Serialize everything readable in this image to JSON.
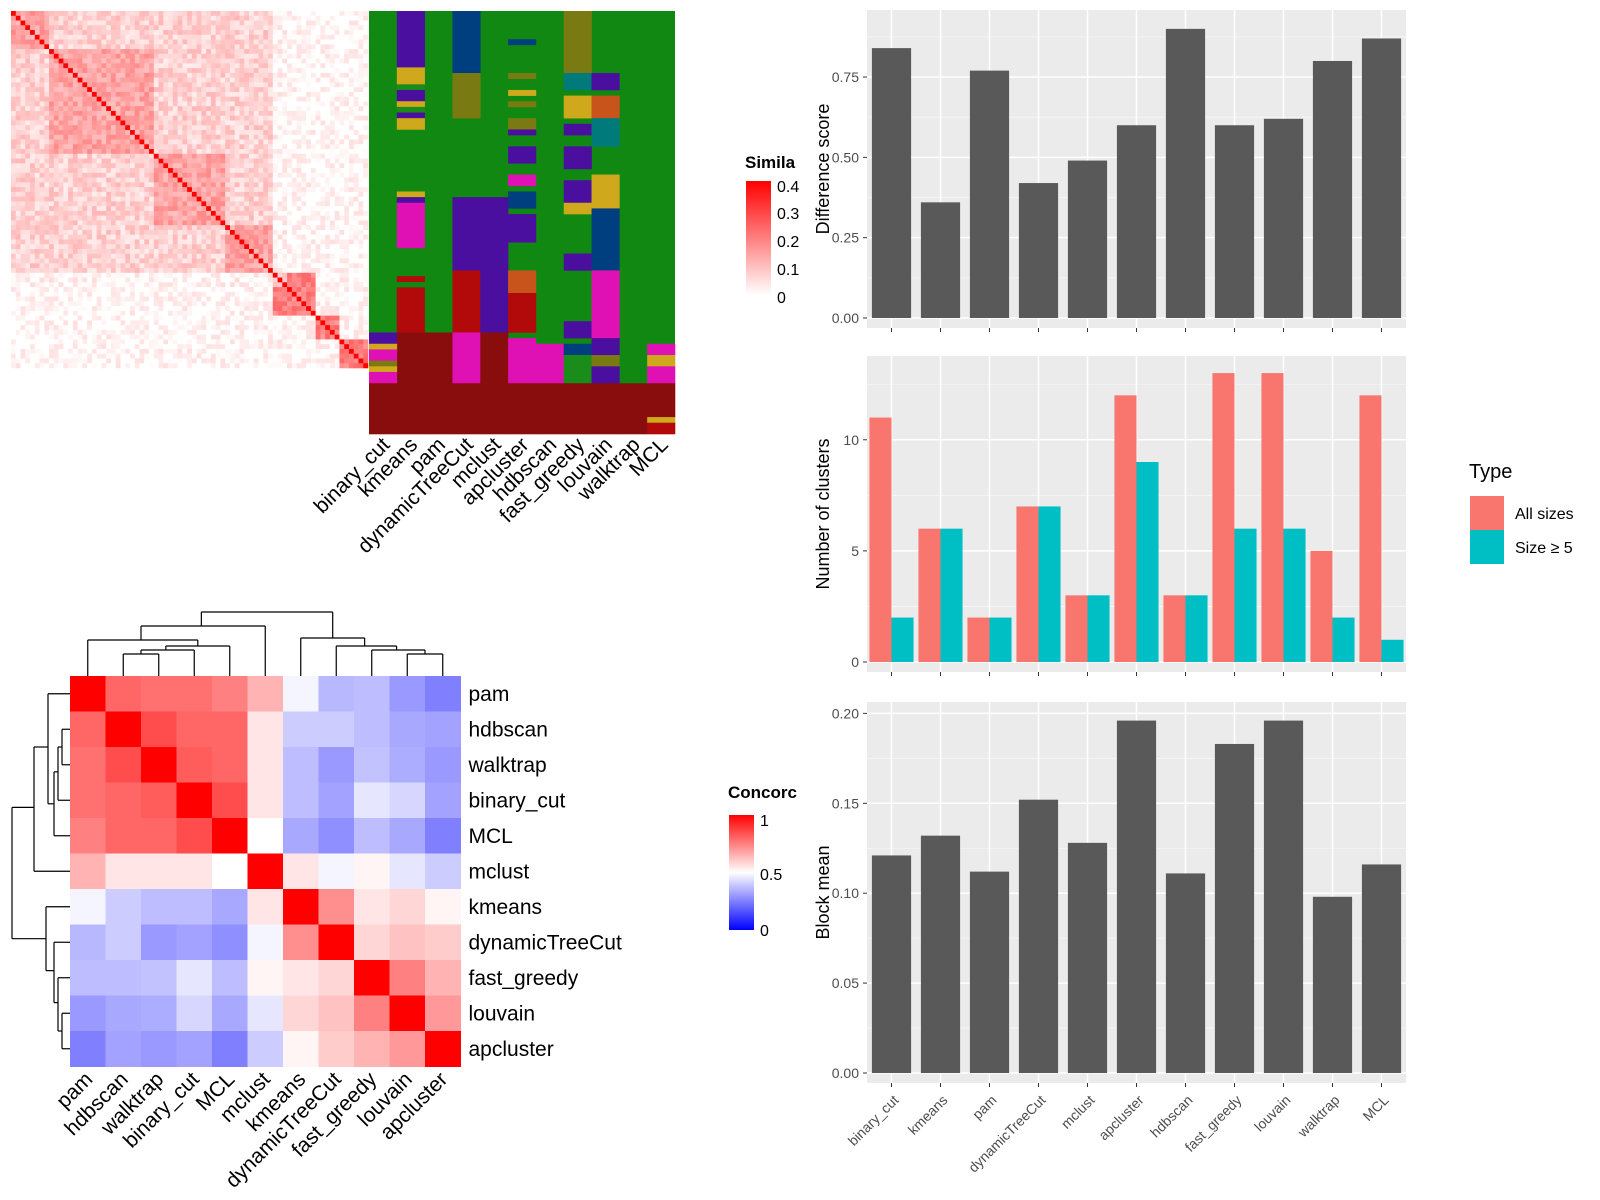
{
  "similarity_legend": {
    "title": "Simila",
    "ticks": [
      "0.4",
      "0.3",
      "0.2",
      "0.1",
      "0"
    ]
  },
  "concordance_legend": {
    "title": "Concorc",
    "ticks": [
      "1",
      "0.5",
      "0"
    ]
  },
  "methods_top": [
    "binary_cut",
    "kmeans",
    "pam",
    "dynamicTreeCut",
    "mclust",
    "apcluster",
    "hdbscan",
    "fast_greedy",
    "louvain",
    "walktrap",
    "MCL"
  ],
  "heatmap_order": [
    "pam",
    "hdbscan",
    "walktrap",
    "binary_cut",
    "MCL",
    "mclust",
    "kmeans",
    "dynamicTreeCut",
    "fast_greedy",
    "louvain",
    "apcluster"
  ],
  "type_legend": {
    "title": "Type",
    "items": [
      "All sizes",
      "Size ≥ 5"
    ]
  },
  "colors": {
    "all_sizes": "#F8766D",
    "size5": "#00BFC4",
    "bar": "#595959",
    "panel": "#EBEBEB"
  },
  "chart_data": [
    {
      "type": "bar",
      "categories": [
        "binary_cut",
        "kmeans",
        "pam",
        "dynamicTreeCut",
        "mclust",
        "apcluster",
        "hdbscan",
        "fast_greedy",
        "louvain",
        "walktrap",
        "MCL"
      ],
      "values": [
        0.84,
        0.36,
        0.77,
        0.42,
        0.49,
        0.6,
        0.9,
        0.6,
        0.62,
        0.8,
        0.87
      ],
      "ylabel": "Difference score",
      "ylim": [
        0,
        0.94
      ],
      "yticks": [
        "0.00",
        "0.25",
        "0.50",
        "0.75"
      ]
    },
    {
      "type": "bar",
      "categories": [
        "binary_cut",
        "kmeans",
        "pam",
        "dynamicTreeCut",
        "mclust",
        "apcluster",
        "hdbscan",
        "fast_greedy",
        "louvain",
        "walktrap",
        "MCL"
      ],
      "series": [
        {
          "name": "All sizes",
          "values": [
            11,
            6,
            2,
            7,
            3,
            12,
            3,
            13,
            13,
            5,
            12
          ]
        },
        {
          "name": "Size ≥ 5",
          "values": [
            2,
            6,
            2,
            7,
            3,
            9,
            3,
            6,
            6,
            2,
            1
          ]
        }
      ],
      "ylabel": "Number of clusters",
      "ylim": [
        0,
        13.5
      ],
      "yticks": [
        "0",
        "5",
        "10"
      ]
    },
    {
      "type": "bar",
      "categories": [
        "binary_cut",
        "kmeans",
        "pam",
        "dynamicTreeCut",
        "mclust",
        "apcluster",
        "hdbscan",
        "fast_greedy",
        "louvain",
        "walktrap",
        "MCL"
      ],
      "values": [
        0.121,
        0.132,
        0.112,
        0.152,
        0.128,
        0.196,
        0.111,
        0.183,
        0.196,
        0.098,
        0.116
      ],
      "ylabel": "Block mean",
      "ylim": [
        0,
        0.203
      ],
      "yticks": [
        "0.00",
        "0.05",
        "0.10",
        "0.15",
        "0.20"
      ]
    },
    {
      "type": "heatmap",
      "rows": [
        "pam",
        "hdbscan",
        "walktrap",
        "binary_cut",
        "MCL",
        "mclust",
        "kmeans",
        "dynamicTreeCut",
        "fast_greedy",
        "louvain",
        "apcluster"
      ],
      "columns": [
        "pam",
        "hdbscan",
        "walktrap",
        "binary_cut",
        "MCL",
        "mclust",
        "kmeans",
        "dynamicTreeCut",
        "fast_greedy",
        "louvain",
        "apcluster"
      ],
      "values": [
        [
          1.0,
          0.8,
          0.78,
          0.78,
          0.75,
          0.65,
          0.48,
          0.36,
          0.37,
          0.3,
          0.25
        ],
        [
          0.8,
          1.0,
          0.85,
          0.8,
          0.8,
          0.55,
          0.4,
          0.4,
          0.37,
          0.33,
          0.32
        ],
        [
          0.78,
          0.85,
          1.0,
          0.82,
          0.8,
          0.55,
          0.37,
          0.3,
          0.38,
          0.34,
          0.3
        ],
        [
          0.78,
          0.8,
          0.82,
          1.0,
          0.85,
          0.55,
          0.37,
          0.32,
          0.45,
          0.42,
          0.32
        ],
        [
          0.75,
          0.8,
          0.8,
          0.85,
          1.0,
          0.5,
          0.33,
          0.28,
          0.37,
          0.33,
          0.25
        ],
        [
          0.65,
          0.55,
          0.55,
          0.55,
          0.5,
          1.0,
          0.55,
          0.48,
          0.52,
          0.45,
          0.4
        ],
        [
          0.48,
          0.4,
          0.37,
          0.37,
          0.33,
          0.55,
          1.0,
          0.72,
          0.55,
          0.58,
          0.52
        ],
        [
          0.36,
          0.4,
          0.3,
          0.32,
          0.28,
          0.48,
          0.72,
          1.0,
          0.58,
          0.62,
          0.6
        ],
        [
          0.37,
          0.37,
          0.38,
          0.45,
          0.37,
          0.52,
          0.55,
          0.58,
          1.0,
          0.75,
          0.65
        ],
        [
          0.3,
          0.33,
          0.34,
          0.42,
          0.33,
          0.45,
          0.58,
          0.62,
          0.75,
          1.0,
          0.7
        ],
        [
          0.25,
          0.32,
          0.3,
          0.32,
          0.25,
          0.4,
          0.52,
          0.6,
          0.65,
          0.7,
          1.0
        ]
      ],
      "legend_range": [
        0,
        1
      ]
    }
  ]
}
